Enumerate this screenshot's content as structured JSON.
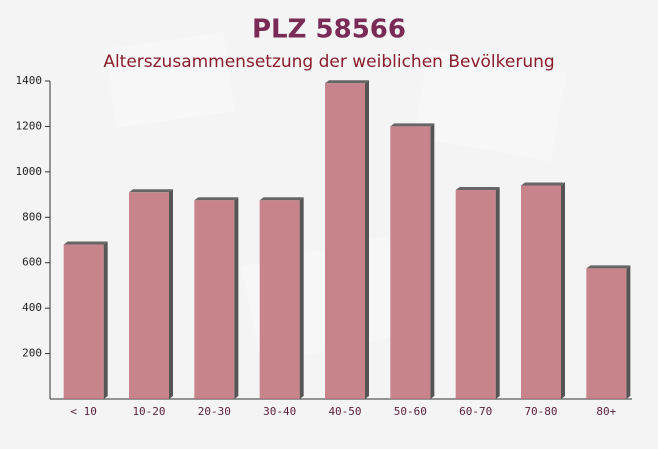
{
  "chart_data": {
    "type": "bar",
    "title": "PLZ 58566",
    "subtitle": "Alterszusammensetzung der weiblichen Bevölkerung",
    "categories": [
      "< 10",
      "10-20",
      "20-30",
      "30-40",
      "40-50",
      "50-60",
      "60-70",
      "70-80",
      "80+"
    ],
    "values": [
      680,
      910,
      875,
      875,
      1390,
      1200,
      920,
      940,
      575
    ],
    "color": "#c07078",
    "ylim": [
      0,
      1400
    ],
    "yticks": [
      200,
      400,
      600,
      800,
      1000,
      1200,
      1400
    ]
  }
}
